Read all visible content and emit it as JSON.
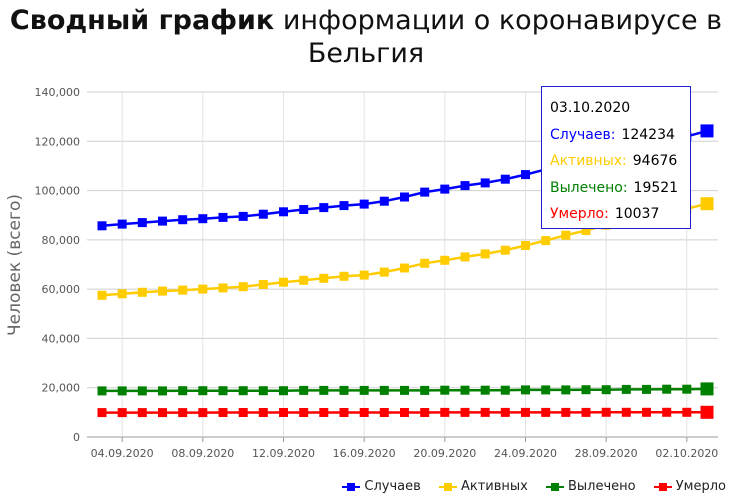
{
  "title_bold": "Сводный график",
  "title_rest": " информации о коронавирусе в Бельгия",
  "chart_data": {
    "type": "line",
    "title": "Сводный график информации о коронавирусе в Бельгия",
    "ylabel": "Человек (всего)",
    "xlabel": "",
    "ylim": [
      0,
      140000
    ],
    "yticks": [
      "0",
      "20,000",
      "40,000",
      "60,000",
      "80,000",
      "100,000",
      "120,000",
      "140,000"
    ],
    "tick_labels": [
      "04.09.2020",
      "08.09.2020",
      "12.09.2020",
      "16.09.2020",
      "20.09.2020",
      "24.09.2020",
      "28.09.2020",
      "02.10.2020"
    ],
    "grid": true,
    "legend_position": "bottom-right",
    "x": [
      "03.09.2020",
      "04.09.2020",
      "05.09.2020",
      "06.09.2020",
      "07.09.2020",
      "08.09.2020",
      "09.09.2020",
      "10.09.2020",
      "11.09.2020",
      "12.09.2020",
      "13.09.2020",
      "14.09.2020",
      "15.09.2020",
      "16.09.2020",
      "17.09.2020",
      "18.09.2020",
      "19.09.2020",
      "20.09.2020",
      "21.09.2020",
      "22.09.2020",
      "23.09.2020",
      "24.09.2020",
      "25.09.2020",
      "26.09.2020",
      "27.09.2020",
      "28.09.2020",
      "29.09.2020",
      "30.09.2020",
      "01.10.2020",
      "02.10.2020",
      "03.10.2020"
    ],
    "series": [
      {
        "name": "Случаев",
        "color": "#0000ff",
        "values": [
          85700,
          86400,
          87000,
          87600,
          88200,
          88600,
          89100,
          89500,
          90400,
          91400,
          92300,
          93100,
          93900,
          94500,
          95700,
          97400,
          99400,
          100600,
          102000,
          103100,
          104600,
          106500,
          108600,
          110800,
          112800,
          115200,
          117500,
          120000,
          121000,
          122000,
          124234
        ]
      },
      {
        "name": "Активных",
        "color": "#ffcc00",
        "values": [
          57500,
          58100,
          58700,
          59200,
          59600,
          60000,
          60500,
          61000,
          61900,
          62800,
          63600,
          64400,
          65200,
          65700,
          66900,
          68600,
          70500,
          71700,
          73100,
          74300,
          75800,
          77700,
          79700,
          81900,
          83800,
          86000,
          88300,
          90600,
          91600,
          92600,
          94676
        ]
      },
      {
        "name": "Вылечено",
        "color": "#008000",
        "values": [
          18700,
          18700,
          18700,
          18700,
          18800,
          18800,
          18800,
          18800,
          18800,
          18800,
          18900,
          18900,
          18900,
          18900,
          18900,
          18900,
          18900,
          19000,
          19000,
          19000,
          19000,
          19100,
          19100,
          19100,
          19200,
          19200,
          19300,
          19300,
          19400,
          19400,
          19521
        ]
      },
      {
        "name": "Умерло",
        "color": "#ff0000",
        "values": [
          9900,
          9900,
          9910,
          9910,
          9920,
          9920,
          9925,
          9930,
          9930,
          9935,
          9940,
          9940,
          9945,
          9950,
          9955,
          9960,
          9960,
          9965,
          9970,
          9975,
          9980,
          9985,
          9990,
          9995,
          10000,
          10005,
          10010,
          10020,
          10025,
          10030,
          10037
        ]
      }
    ]
  },
  "tooltip": {
    "date": "03.10.2020",
    "rows": [
      {
        "label": "Случаев:",
        "value": "124234",
        "color": "#0000ff"
      },
      {
        "label": "Активных:",
        "value": "94676",
        "color": "#ffcc00"
      },
      {
        "label": "Вылечено:",
        "value": "19521",
        "color": "#008000"
      },
      {
        "label": "Умерло:",
        "value": "10037",
        "color": "#ff0000"
      }
    ]
  },
  "legend": [
    {
      "label": "Случаев",
      "color": "#0000ff"
    },
    {
      "label": "Активных",
      "color": "#ffcc00"
    },
    {
      "label": "Вылечено",
      "color": "#008000"
    },
    {
      "label": "Умерло",
      "color": "#ff0000"
    }
  ]
}
